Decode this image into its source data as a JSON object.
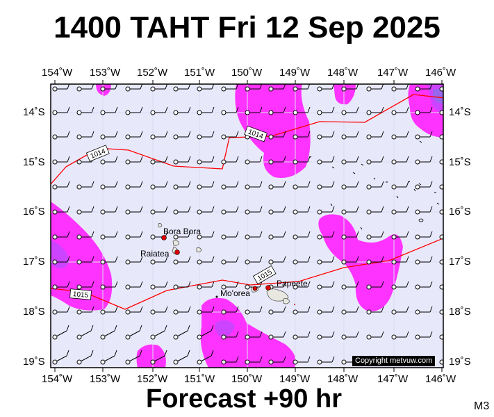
{
  "title": "1400 TAHT Fri 12 Sep 2025",
  "footer": "Forecast +90 hr",
  "model_label": "M3",
  "credit": "Copyright metvuw.com",
  "lon_labels": [
    "154˚W",
    "153˚W",
    "152˚W",
    "151˚W",
    "150˚W",
    "149˚W",
    "148˚W",
    "147˚W",
    "146˚W"
  ],
  "lat_labels": [
    "14˚S",
    "15˚S",
    "16˚S",
    "17˚S",
    "18˚S",
    "19˚S"
  ],
  "places": [
    {
      "name": "Bora Bora"
    },
    {
      "name": "Raiatea"
    },
    {
      "name": "Papeete"
    },
    {
      "name": "Mo'orea"
    }
  ],
  "isobars": [
    {
      "value": "1014"
    },
    {
      "value": "1014"
    },
    {
      "value": "1015"
    },
    {
      "value": "1015"
    }
  ],
  "colors": {
    "background": "#e8e8fb",
    "rain_light": "#ff33ff",
    "rain_medium": "#cc44ff",
    "rain_heavy": "#9966ee",
    "isobar": "#ff0000",
    "land": "#e8e8e0"
  }
}
